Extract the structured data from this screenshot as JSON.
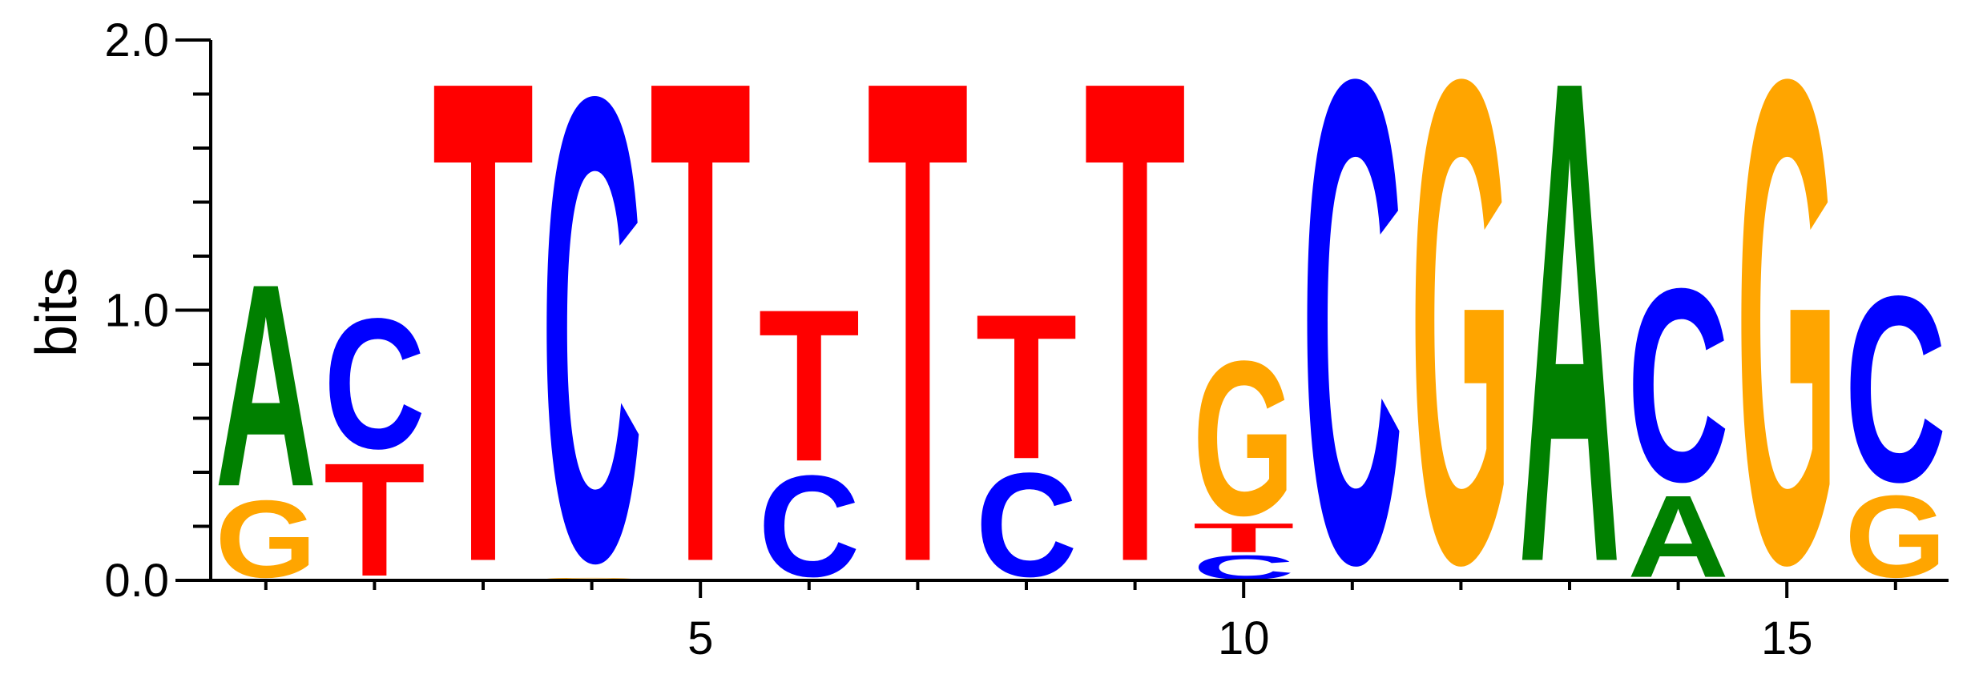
{
  "chart_data": {
    "type": "sequence-logo",
    "ylabel": "bits",
    "ylim": [
      0,
      2
    ],
    "y_ticks": [
      "0.0",
      "1.0",
      "2.0"
    ],
    "x_ticks": [
      "5",
      "10",
      "15"
    ],
    "x_tick_values": [
      5,
      10,
      15
    ],
    "colors": {
      "A": "#008000",
      "C": "#0000ff",
      "G": "#ffa500",
      "T": "#ff0000"
    },
    "positions": [
      {
        "pos": 1,
        "stack": [
          {
            "base": "G",
            "bits": 0.32
          },
          {
            "base": "A",
            "bits": 0.84
          }
        ]
      },
      {
        "pos": 2,
        "stack": [
          {
            "base": "T",
            "bits": 0.47
          },
          {
            "base": "C",
            "bits": 0.54
          }
        ]
      },
      {
        "pos": 3,
        "stack": [
          {
            "base": "T",
            "bits": 2.0
          }
        ]
      },
      {
        "pos": 4,
        "stack": [
          {
            "base": "G",
            "bits": 0.01
          },
          {
            "base": "C",
            "bits": 1.92
          }
        ]
      },
      {
        "pos": 5,
        "stack": [
          {
            "base": "T",
            "bits": 2.0
          }
        ]
      },
      {
        "pos": 6,
        "stack": [
          {
            "base": "C",
            "bits": 0.42
          },
          {
            "base": "T",
            "bits": 0.63
          }
        ]
      },
      {
        "pos": 7,
        "stack": [
          {
            "base": "T",
            "bits": 2.0
          }
        ]
      },
      {
        "pos": 8,
        "stack": [
          {
            "base": "C",
            "bits": 0.43
          },
          {
            "base": "T",
            "bits": 0.6
          }
        ]
      },
      {
        "pos": 9,
        "stack": [
          {
            "base": "T",
            "bits": 2.0
          }
        ]
      },
      {
        "pos": 10,
        "stack": [
          {
            "base": "C",
            "bits": 0.1
          },
          {
            "base": "T",
            "bits": 0.12
          },
          {
            "base": "G",
            "bits": 0.64
          }
        ]
      },
      {
        "pos": 11,
        "stack": [
          {
            "base": "C",
            "bits": 2.0
          }
        ]
      },
      {
        "pos": 12,
        "stack": [
          {
            "base": "G",
            "bits": 2.0
          }
        ]
      },
      {
        "pos": 13,
        "stack": [
          {
            "base": "A",
            "bits": 2.0
          }
        ]
      },
      {
        "pos": 14,
        "stack": [
          {
            "base": "A",
            "bits": 0.34
          },
          {
            "base": "C",
            "bits": 0.8
          }
        ]
      },
      {
        "pos": 15,
        "stack": [
          {
            "base": "G",
            "bits": 2.0
          }
        ]
      },
      {
        "pos": 16,
        "stack": [
          {
            "base": "G",
            "bits": 0.34
          },
          {
            "base": "C",
            "bits": 0.77
          }
        ]
      }
    ]
  }
}
